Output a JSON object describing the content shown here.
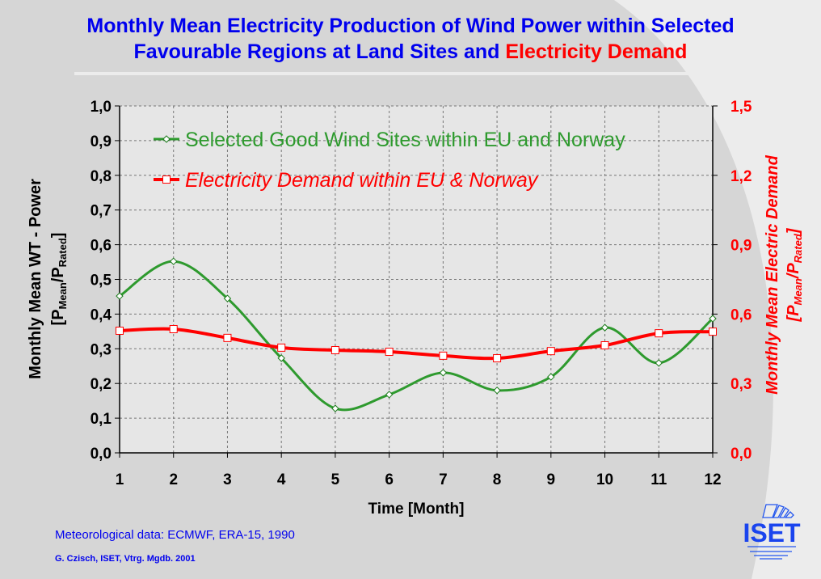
{
  "title": {
    "line1": "Monthly Mean Electricity Production of Wind Power within Selected",
    "line2_a": "Favourable Regions at Land Sites and ",
    "line2_b": "Electricity Demand"
  },
  "footer": {
    "source": "Meteorological data: ECMWF, ERA-15, 1990",
    "credit": "G. Czisch, ISET, Vtrg. Mgdb. 2001"
  },
  "logo": {
    "text": "ISET"
  },
  "colors": {
    "wind": "#2e9a2e",
    "demand": "#ff0000",
    "title": "#0000ee"
  },
  "chart_data": {
    "type": "line",
    "xlabel": "Time  [Month]",
    "ylabel_left": "Monthly Mean WT - Power",
    "ylabel_left_unit": {
      "open": "[P",
      "sub1": "Mean",
      "mid": "/P",
      "sub2": "Rated",
      "close": "]"
    },
    "ylabel_right": "Monthly Mean Electric Demand",
    "ylabel_right_unit": {
      "open": "[P",
      "sub1": "Mean",
      "mid": "/P",
      "sub2": "Rated",
      "close": "]"
    },
    "x": [
      1,
      2,
      3,
      4,
      5,
      6,
      7,
      8,
      9,
      10,
      11,
      12
    ],
    "xlim": [
      1,
      12
    ],
    "ylim_left": [
      0,
      1
    ],
    "ylim_right": [
      0,
      1.5
    ],
    "yticks_left": [
      "0,0",
      "0,1",
      "0,2",
      "0,3",
      "0,4",
      "0,5",
      "0,6",
      "0,7",
      "0,8",
      "0,9",
      "1,0"
    ],
    "yticks_right": [
      "0,0",
      "0,3",
      "0,6",
      "0,9",
      "1,2",
      "1,5"
    ],
    "grid": true,
    "legend_position": "top",
    "series": [
      {
        "name": "Selected Good Wind Sites within EU and Norway",
        "axis": "left",
        "values": [
          0.452,
          0.552,
          0.445,
          0.273,
          0.128,
          0.168,
          0.231,
          0.18,
          0.219,
          0.361,
          0.259,
          0.387
        ]
      },
      {
        "name": "Electricity Demand within EU & Norway",
        "axis": "right",
        "values": [
          0.528,
          0.535,
          0.497,
          0.455,
          0.444,
          0.437,
          0.42,
          0.409,
          0.44,
          0.465,
          0.517,
          0.524
        ]
      }
    ]
  }
}
